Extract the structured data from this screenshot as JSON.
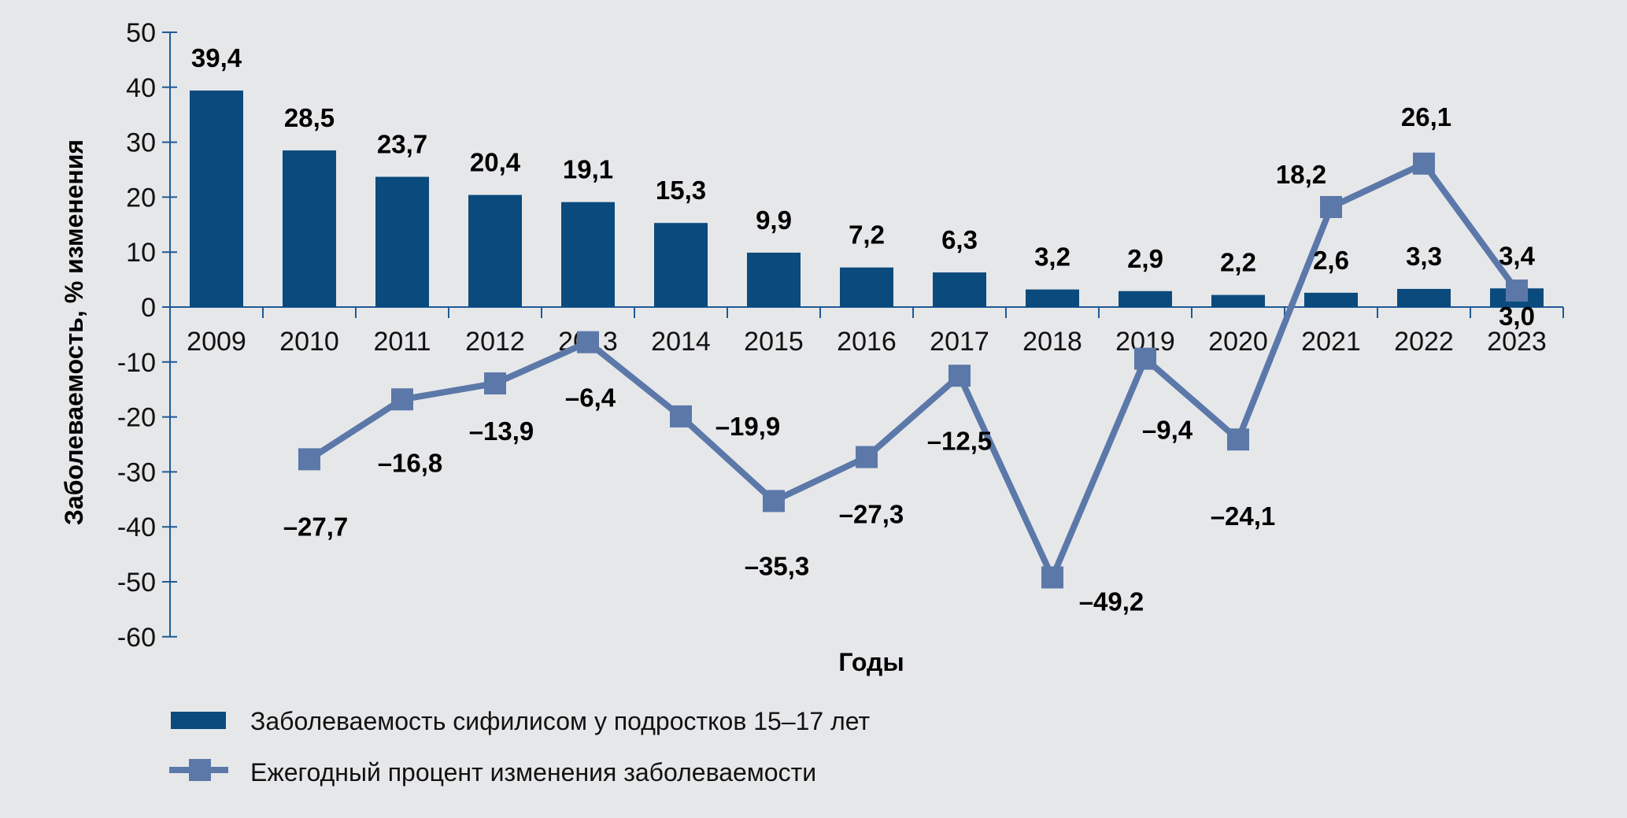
{
  "chart_data": {
    "type": "bar+line",
    "title": "",
    "xlabel": "Годы",
    "ylabel": "Заболеваемость, % изменения",
    "ylim": [
      -60,
      50
    ],
    "yticks": [
      "50",
      "40",
      "30",
      "20",
      "10",
      "0",
      "-10",
      "-20",
      "-30",
      "-40",
      "-50",
      "-60"
    ],
    "ytick_values": [
      50,
      40,
      30,
      20,
      10,
      0,
      -10,
      -20,
      -30,
      -40,
      -50,
      -60
    ],
    "categories": [
      "2009",
      "2010",
      "2011",
      "2012",
      "2013",
      "2014",
      "2015",
      "2016",
      "2017",
      "2018",
      "2019",
      "2020",
      "2021",
      "2022",
      "2023"
    ],
    "series": [
      {
        "name": "Заболеваемость сифилисом у подростков 15–17 лет",
        "type": "bar",
        "color": "#0b4a7d",
        "values": [
          39.4,
          28.5,
          23.7,
          20.4,
          19.1,
          15.3,
          9.9,
          7.2,
          6.3,
          3.2,
          2.9,
          2.2,
          2.6,
          3.3,
          3.4
        ],
        "labels": [
          "39,4",
          "28,5",
          "23,7",
          "20,4",
          "19,1",
          "15,3",
          "9,9",
          "7,2",
          "6,3",
          "3,2",
          "2,9",
          "2,2",
          "2,6",
          "3,3",
          "3,4"
        ]
      },
      {
        "name": "Ежегодный процент изменения заболеваемости",
        "type": "line",
        "marker": "square",
        "color": "#5b78a9",
        "values": [
          null,
          -27.7,
          -16.8,
          -13.9,
          -6.4,
          -19.9,
          -35.3,
          -27.3,
          -12.5,
          -49.2,
          -9.4,
          -24.1,
          18.2,
          26.1,
          3.0
        ],
        "labels": [
          "",
          "–27,7",
          "–16,8",
          "–13,9",
          "–6,4",
          "–19,9",
          "–35,3",
          "–27,3",
          "–12,5",
          "–49,2",
          "–9,4",
          "–24,1",
          "18,2",
          "26,1",
          "3,0"
        ]
      }
    ],
    "legend": "bottom-left",
    "grid": false
  }
}
